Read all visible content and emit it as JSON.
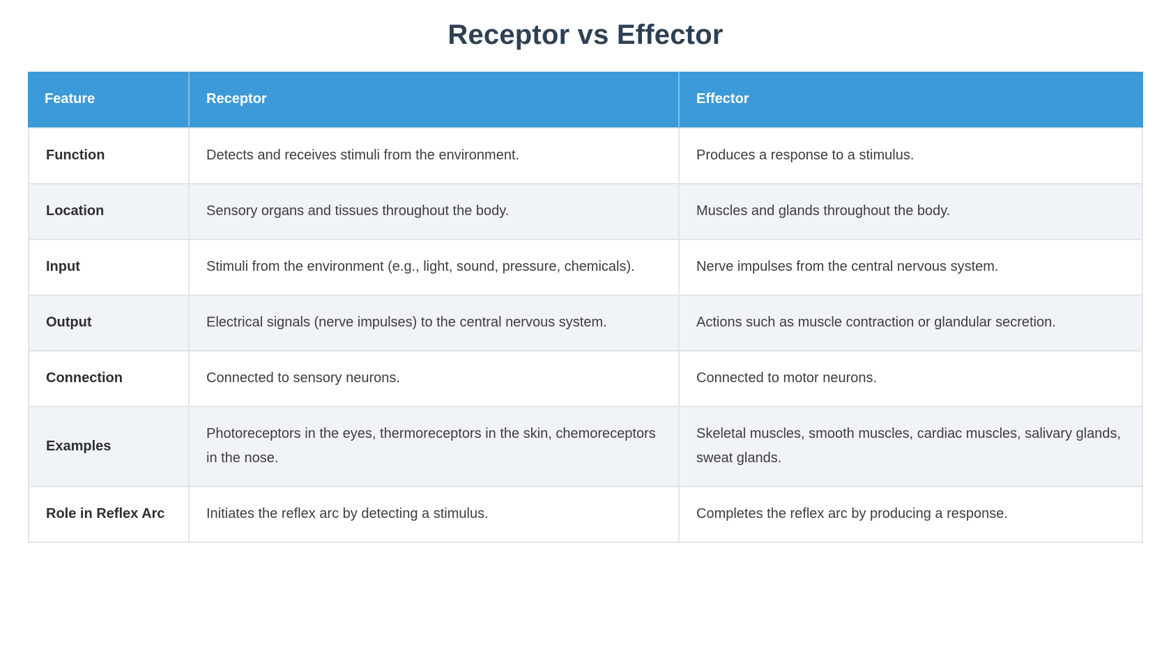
{
  "page": {
    "title": "Receptor vs Effector"
  },
  "colors": {
    "header_bg": "#3d9ad8",
    "header_text": "#ffffff",
    "title_text": "#2e4053",
    "row_alt_bg": "#f0f3f8",
    "row_bg": "#ffffff",
    "body_text": "#3d3d3d",
    "border": "#e2e5e9"
  },
  "table": {
    "columns": [
      "Feature",
      "Receptor",
      "Effector"
    ],
    "rows": [
      {
        "feature": "Function",
        "receptor": "Detects and receives stimuli from the environment.",
        "effector": "Produces a response to a stimulus."
      },
      {
        "feature": "Location",
        "receptor": "Sensory organs and tissues throughout the body.",
        "effector": "Muscles and glands throughout the body."
      },
      {
        "feature": "Input",
        "receptor": "Stimuli from the environment (e.g., light, sound, pressure, chemicals).",
        "effector": "Nerve impulses from the central nervous system."
      },
      {
        "feature": "Output",
        "receptor": "Electrical signals (nerve impulses) to the central nervous system.",
        "effector": "Actions such as muscle contraction or glandular secretion."
      },
      {
        "feature": "Connection",
        "receptor": "Connected to sensory neurons.",
        "effector": "Connected to motor neurons."
      },
      {
        "feature": "Examples",
        "receptor": "Photoreceptors in the eyes, thermoreceptors in the skin, chemoreceptors in the nose.",
        "effector": "Skeletal muscles, smooth muscles, cardiac muscles, salivary glands, sweat glands."
      },
      {
        "feature": "Role in Reflex Arc",
        "receptor": "Initiates the reflex arc by detecting a stimulus.",
        "effector": "Completes the reflex arc by producing a response."
      }
    ]
  }
}
